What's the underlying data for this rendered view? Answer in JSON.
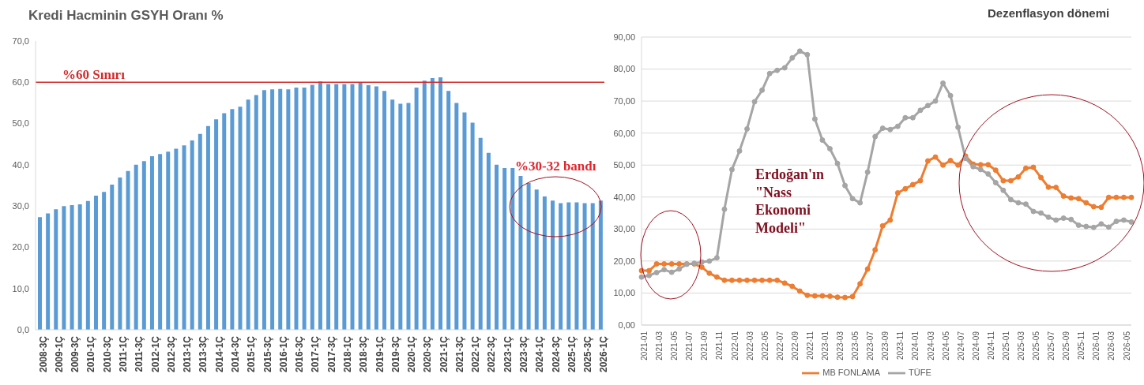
{
  "chart_data": [
    {
      "type": "bar",
      "title": "Kredi Hacminin GSYH Oranı %",
      "categories": [
        "2008-3Ç",
        null,
        "2009-1Ç",
        null,
        "2009-3Ç",
        null,
        "2010-1Ç",
        null,
        "2010-3Ç",
        null,
        "2011-1Ç",
        null,
        "2011-3Ç",
        null,
        "2012-1Ç",
        null,
        "2012-3Ç",
        null,
        "2013-1Ç",
        null,
        "2013-3Ç",
        null,
        "2014-1Ç",
        null,
        "2014-3Ç",
        null,
        "2015-1Ç",
        null,
        "2015-3Ç",
        null,
        "2016-1Ç",
        null,
        "2016-3Ç",
        null,
        "2017-1Ç",
        null,
        "2017-3Ç",
        null,
        "2018-1Ç",
        null,
        "2018-3Ç",
        null,
        "2019-1Ç",
        null,
        "2019-3Ç",
        null,
        "2020-1Ç",
        null,
        "2020-3Ç",
        null,
        "2021-1Ç",
        null,
        "2021-3Ç",
        null,
        "2022-1Ç",
        null,
        "2022-3Ç",
        null,
        "2023-1Ç",
        null,
        "2023-3Ç",
        null,
        "2024-1Ç",
        null,
        "2024-3Ç",
        null,
        "2025-1Ç",
        null,
        "2025-3Ç",
        null,
        "2026-1Ç"
      ],
      "values": [
        27.3,
        28.2,
        29.2,
        30.0,
        30.2,
        30.4,
        31.2,
        32.5,
        33.4,
        35.2,
        36.9,
        38.5,
        40.0,
        40.9,
        42.1,
        42.6,
        43.2,
        43.9,
        44.7,
        45.9,
        47.5,
        49.4,
        51.0,
        52.5,
        53.5,
        54.1,
        55.8,
        56.9,
        58.1,
        58.3,
        58.4,
        58.3,
        58.7,
        58.7,
        59.4,
        60.2,
        59.6,
        59.6,
        59.6,
        59.6,
        59.9,
        59.3,
        59.0,
        57.9,
        55.8,
        54.8,
        55.0,
        58.7,
        60.4,
        61.0,
        61.2,
        57.9,
        55.0,
        52.7,
        50.2,
        46.5,
        42.9,
        40.0,
        39.2,
        39.2,
        37.3,
        35.6,
        34.0,
        32.3,
        31.3,
        30.7,
        30.9,
        30.9,
        30.7,
        30.7,
        31.3
      ],
      "color": "#5b9bd5",
      "ylim": [
        0,
        70
      ],
      "yticks": [
        {
          "value": 0,
          "label": "0,0"
        },
        {
          "value": 10,
          "label": "10,0"
        },
        {
          "value": 20,
          "label": "20,0"
        },
        {
          "value": 30,
          "label": "30,0"
        },
        {
          "value": 40,
          "label": "40,0"
        },
        {
          "value": 50,
          "label": "50,0"
        },
        {
          "value": 60,
          "label": "60,0"
        },
        {
          "value": 70,
          "label": "70,0"
        }
      ],
      "ref_lines": [
        {
          "axis": "y",
          "value": 60,
          "label": "%60 Sınırı",
          "color": "#d42a2a"
        }
      ],
      "annotations": [
        "%30-32 bandı"
      ]
    },
    {
      "type": "line",
      "title": "Dezenflasyon dönemi",
      "categories": [
        "2021-01",
        null,
        "2021-03",
        null,
        "2021-05",
        null,
        "2021-07",
        null,
        "2021-09",
        null,
        "2021-11",
        null,
        "2022-01",
        null,
        "2022-03",
        null,
        "2022-05",
        null,
        "2022-07",
        null,
        "2022-09",
        null,
        "2022-11",
        null,
        "2023-01",
        null,
        "2023-03",
        null,
        "2023-05",
        null,
        "2023-07",
        null,
        "2023-09",
        null,
        "2023-11",
        null,
        "2024-01",
        null,
        "2024-03",
        null,
        "2024-05",
        null,
        "2024-07",
        null,
        "2024-09",
        null,
        "2024-11",
        null,
        "2025-01",
        null,
        "2025-03",
        null,
        "2025-05",
        null,
        "2025-07",
        null,
        "2025-09",
        null,
        "2025-11",
        null,
        "2026-01",
        null,
        "2026-03",
        null,
        "2026-05",
        null
      ],
      "series": [
        {
          "name": "MB FONLAMA",
          "color": "#ed7d31",
          "values": [
            17.0,
            17.0,
            19.1,
            19.1,
            19.1,
            19.1,
            19.1,
            19.1,
            18.1,
            16.2,
            15.0,
            14.0,
            14.0,
            14.0,
            14.0,
            14.0,
            14.0,
            14.0,
            14.0,
            13.1,
            12.1,
            10.6,
            9.3,
            9.1,
            9.1,
            9.0,
            8.7,
            8.6,
            8.9,
            12.9,
            17.5,
            23.5,
            31.0,
            32.8,
            41.3,
            42.6,
            43.9,
            45.1,
            51.3,
            52.5,
            50.0,
            51.4,
            50.0,
            52.8,
            50.3,
            50.1,
            50.1,
            48.4,
            45.1,
            45.1,
            46.3,
            49.0,
            49.3,
            46.1,
            43.1,
            43.0,
            40.3,
            39.7,
            39.5,
            38.2,
            37.0,
            36.8,
            39.9,
            39.9,
            39.9,
            39.9
          ]
        },
        {
          "name": "TÜFE",
          "color": "#a5a5a5",
          "values": [
            15.0,
            15.5,
            16.4,
            17.3,
            16.5,
            17.5,
            19.0,
            19.3,
            19.7,
            20.0,
            21.0,
            36.2,
            48.6,
            54.4,
            61.3,
            69.8,
            73.4,
            78.6,
            79.6,
            80.4,
            83.5,
            85.6,
            84.5,
            64.4,
            57.8,
            55.1,
            50.5,
            43.6,
            39.5,
            38.2,
            47.8,
            58.9,
            61.5,
            61.1,
            62.1,
            64.8,
            64.8,
            67.1,
            68.6,
            70.0,
            75.6,
            71.7,
            61.8,
            52.1,
            49.5,
            48.6,
            47.2,
            44.5,
            42.1,
            39.2,
            38.2,
            37.8,
            35.5,
            35.0,
            33.7,
            32.8,
            33.4,
            33.0,
            31.2,
            30.8,
            30.5,
            31.6,
            30.6,
            32.4,
            32.8,
            32.2
          ]
        }
      ],
      "ylim": [
        0,
        90
      ],
      "yticks": [
        {
          "value": 0,
          "label": "0,00"
        },
        {
          "value": 10,
          "label": "10,00"
        },
        {
          "value": 20,
          "label": "20,00"
        },
        {
          "value": 30,
          "label": "30,00"
        },
        {
          "value": 40,
          "label": "40,00"
        },
        {
          "value": 50,
          "label": "50,00"
        },
        {
          "value": 60,
          "label": "60,00"
        },
        {
          "value": 70,
          "label": "70,00"
        },
        {
          "value": 80,
          "label": "80,00"
        },
        {
          "value": 90,
          "label": "90,00"
        }
      ],
      "grid": "y",
      "legend": "bottom",
      "marker": "circle",
      "line_style": "solid",
      "annotations": [
        "Erdoğan'ın \"Nass Ekonomi Modeli\""
      ]
    }
  ]
}
